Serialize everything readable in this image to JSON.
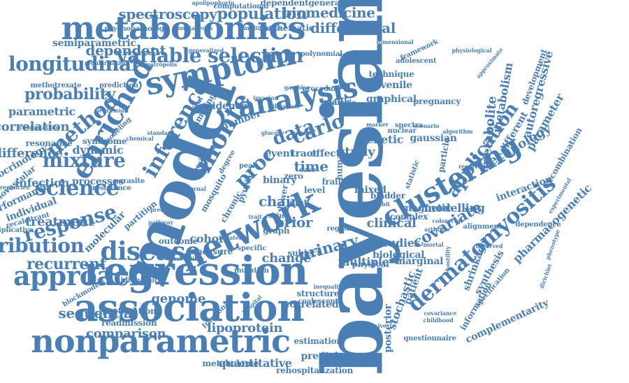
{
  "colors": {
    "word": "#4a7fb5",
    "background": "#ffffff"
  },
  "words": [
    {
      "text": "bayesian"
    },
    {
      "text": "model"
    },
    {
      "text": "regression"
    },
    {
      "text": "association"
    },
    {
      "text": "nonparametric"
    },
    {
      "text": "network"
    },
    {
      "text": "metabolomics"
    },
    {
      "text": "symptom"
    },
    {
      "text": "analysis"
    },
    {
      "text": "clustering"
    },
    {
      "text": "dermatomyositis"
    },
    {
      "text": "enriched"
    },
    {
      "text": "approach"
    },
    {
      "text": "disease"
    },
    {
      "text": "variable selection"
    },
    {
      "text": "longitudinal"
    },
    {
      "text": "inference"
    },
    {
      "text": "monte"
    },
    {
      "text": "carlo"
    },
    {
      "text": "data"
    },
    {
      "text": "proc"
    },
    {
      "text": "mixture"
    },
    {
      "text": "science"
    },
    {
      "text": "method"
    },
    {
      "text": "response"
    },
    {
      "text": "distribution"
    },
    {
      "text": "recurrent"
    },
    {
      "text": "application"
    },
    {
      "text": "urinary"
    },
    {
      "text": "covariate"
    },
    {
      "text": "population"
    },
    {
      "text": "spectroscopy"
    },
    {
      "text": "biomedicine"
    },
    {
      "text": "differential"
    },
    {
      "text": "probability"
    },
    {
      "text": "dependent"
    },
    {
      "text": "correlation"
    },
    {
      "text": "difference"
    },
    {
      "text": "infection"
    },
    {
      "text": "treatment"
    },
    {
      "text": "sequential"
    },
    {
      "text": "comparison"
    },
    {
      "text": "genome"
    },
    {
      "text": "chain"
    },
    {
      "text": "cohort"
    },
    {
      "text": "change"
    },
    {
      "text": "multiple"
    },
    {
      "text": "prior"
    },
    {
      "text": "time"
    },
    {
      "text": "study"
    },
    {
      "text": "genetic"
    },
    {
      "text": "clinical"
    },
    {
      "text": "studies"
    },
    {
      "text": "modelling"
    },
    {
      "text": "technology"
    },
    {
      "text": "interaction"
    },
    {
      "text": "shrinkage"
    },
    {
      "text": "synthesis"
    },
    {
      "text": "stochastic"
    },
    {
      "text": "patient"
    },
    {
      "text": "posterior"
    },
    {
      "text": "lipoprotein"
    },
    {
      "text": "quantitative"
    },
    {
      "text": "prediabetes"
    },
    {
      "text": "rehospitalization"
    },
    {
      "text": "metabolome"
    },
    {
      "text": "correlated"
    },
    {
      "text": "estimation"
    },
    {
      "text": "structure"
    },
    {
      "text": "coalescent"
    },
    {
      "text": "metabolite"
    },
    {
      "text": "metabolism"
    },
    {
      "text": "autoregressive"
    },
    {
      "text": "parameter"
    },
    {
      "text": "pharmacogenetic"
    },
    {
      "text": "complementarity"
    },
    {
      "text": "gaussian"
    },
    {
      "text": "graphical"
    },
    {
      "text": "juvenile"
    },
    {
      "text": "technique"
    },
    {
      "text": "health"
    },
    {
      "text": "pregnancy"
    },
    {
      "text": "mathematic"
    },
    {
      "text": "computational"
    },
    {
      "text": "dependentgeneralized"
    },
    {
      "text": "semiparametric"
    },
    {
      "text": "psychopathology"
    },
    {
      "text": "apolipophorin"
    },
    {
      "text": "parametric"
    },
    {
      "text": "resonance"
    },
    {
      "text": "dynamic"
    },
    {
      "text": "syndrome"
    },
    {
      "text": "processes"
    },
    {
      "text": "resistance"
    },
    {
      "text": "endocrinology"
    },
    {
      "text": "performance"
    },
    {
      "text": "individual"
    },
    {
      "text": "cardiovascular"
    },
    {
      "text": "recalcitrant"
    },
    {
      "text": "molecular"
    },
    {
      "text": "multiplicative"
    },
    {
      "text": "blockmodels"
    },
    {
      "text": "readmission"
    },
    {
      "text": "protonation"
    },
    {
      "text": "idiopathic"
    },
    {
      "text": "outcome"
    },
    {
      "text": "measure"
    },
    {
      "text": "event"
    },
    {
      "text": "tract"
    },
    {
      "text": "effect"
    },
    {
      "text": "binary"
    },
    {
      "text": "evidence"
    },
    {
      "text": "number"
    },
    {
      "text": "sampling"
    },
    {
      "text": "methotrexate"
    },
    {
      "text": "prediction"
    },
    {
      "text": "framework"
    },
    {
      "text": "adolescent"
    },
    {
      "text": "mixed"
    },
    {
      "text": "subject"
    },
    {
      "text": "mutation"
    },
    {
      "text": "magnetic"
    },
    {
      "text": "complex"
    },
    {
      "text": "biological"
    },
    {
      "text": "marginal"
    },
    {
      "text": "physical"
    },
    {
      "text": "bladder"
    },
    {
      "text": "chronic"
    },
    {
      "text": "lower"
    },
    {
      "text": "mosquito"
    },
    {
      "text": "partition"
    },
    {
      "text": "questionnaire"
    },
    {
      "text": "alignment"
    },
    {
      "text": "information"
    },
    {
      "text": "different"
    },
    {
      "text": "development"
    },
    {
      "text": "recombination"
    },
    {
      "text": "simultaneous"
    },
    {
      "text": "multivariate"
    },
    {
      "text": "polynomial"
    },
    {
      "text": "conditional"
    },
    {
      "text": "dimensional"
    },
    {
      "text": "generalized"
    },
    {
      "text": "metropolis"
    },
    {
      "text": "regularisation"
    },
    {
      "text": "depression"
    },
    {
      "text": "computation"
    },
    {
      "text": "discrepancies"
    },
    {
      "text": "modeling"
    },
    {
      "text": "chemical"
    },
    {
      "text": "parasite"
    },
    {
      "text": "predictor"
    },
    {
      "text": "significant"
    },
    {
      "text": "depressive"
    },
    {
      "text": "childhood"
    },
    {
      "text": "covariance"
    },
    {
      "text": "pathway"
    },
    {
      "text": "hospital"
    },
    {
      "text": "fractional"
    },
    {
      "text": "standard"
    },
    {
      "text": "survival"
    },
    {
      "text": "activity"
    },
    {
      "text": "degree"
    },
    {
      "text": "obesity"
    },
    {
      "text": "specific"
    },
    {
      "text": "region"
    },
    {
      "text": "level"
    },
    {
      "text": "frailty"
    },
    {
      "text": "nuclear"
    },
    {
      "text": "spectra"
    },
    {
      "text": "algorithm"
    },
    {
      "text": "particle"
    },
    {
      "text": "statistic"
    },
    {
      "text": "dependence"
    },
    {
      "text": "observed"
    },
    {
      "text": "specification"
    },
    {
      "text": "experimental"
    },
    {
      "text": "phenotype"
    },
    {
      "text": "physiological"
    },
    {
      "text": "approximate"
    },
    {
      "text": "recurrence"
    },
    {
      "text": "colorectal"
    },
    {
      "text": "arthritis"
    },
    {
      "text": "graph"
    },
    {
      "text": "joint"
    },
    {
      "text": "peak"
    },
    {
      "text": "zero"
    },
    {
      "text": "sample"
    },
    {
      "text": "procedure"
    },
    {
      "text": "illustrate"
    },
    {
      "text": "human"
    },
    {
      "text": "gambiae"
    },
    {
      "text": "invasion"
    },
    {
      "text": "maternal"
    },
    {
      "text": "case"
    },
    {
      "text": "pyuria"
    },
    {
      "text": "trait"
    },
    {
      "text": "scenario"
    },
    {
      "text": "marker"
    },
    {
      "text": "probit"
    },
    {
      "text": "skin"
    },
    {
      "text": "glucose"
    },
    {
      "text": "normal"
    },
    {
      "text": "inequality"
    },
    {
      "text": "mortal"
    },
    {
      "text": "hostility"
    },
    {
      "text": "dirichlet"
    },
    {
      "text": "reversible"
    },
    {
      "text": "isolated"
    }
  ]
}
